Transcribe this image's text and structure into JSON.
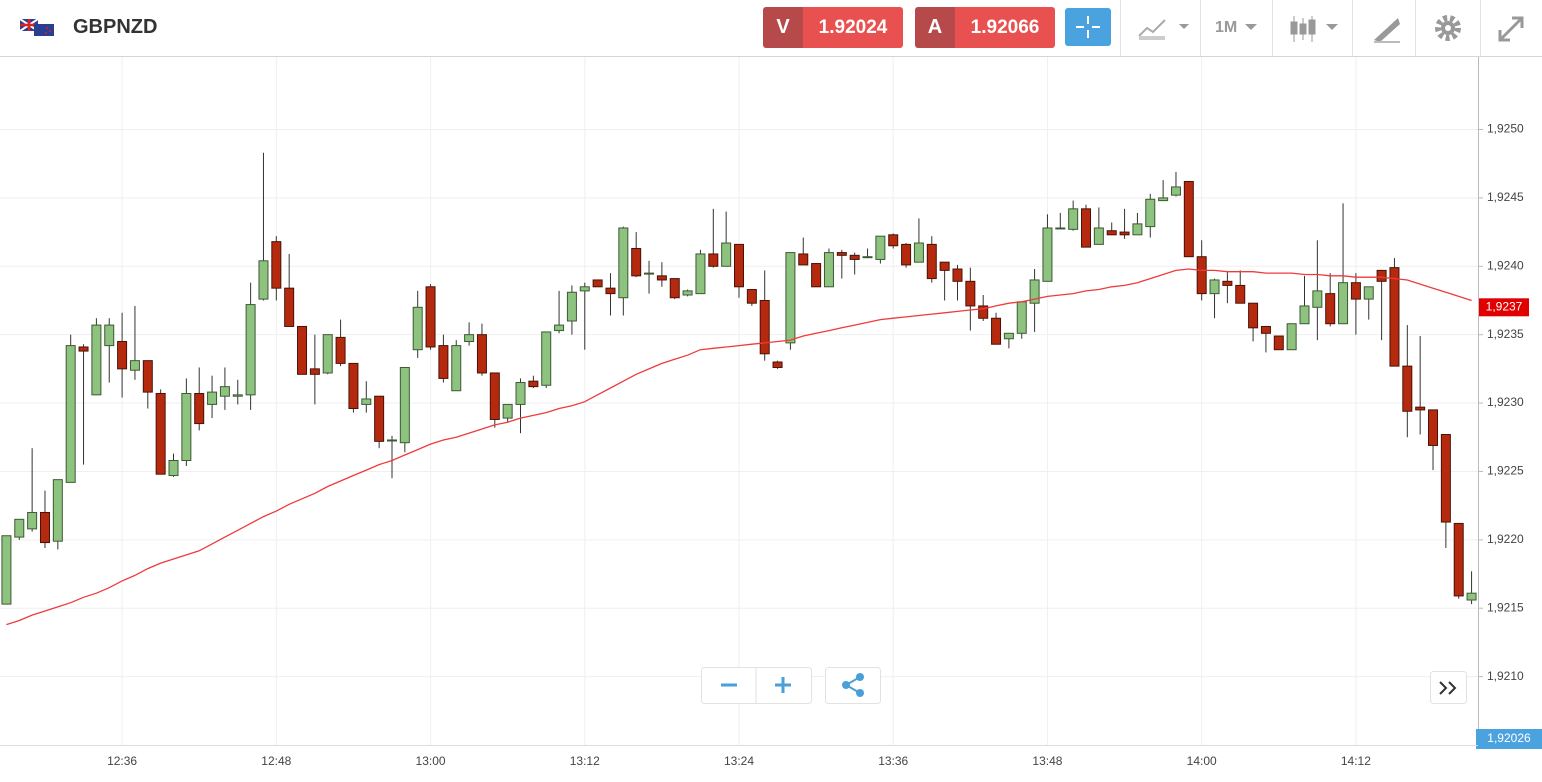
{
  "header": {
    "symbol": "GBPNZD",
    "bid_key": "V",
    "bid": "1.92024",
    "ask_key": "A",
    "ask": "1.92066",
    "interval": "1M"
  },
  "chart_data": {
    "type": "candlestick",
    "categories": [
      null,
      null,
      null,
      null,
      null,
      null,
      null,
      null,
      null,
      "12:36",
      null,
      null,
      null,
      null,
      null,
      null,
      null,
      null,
      null,
      null,
      null,
      "12:48",
      null,
      null,
      null,
      null,
      null,
      null,
      null,
      null,
      null,
      null,
      null,
      "13:00",
      null,
      null,
      null,
      null,
      null,
      null,
      null,
      null,
      null,
      null,
      null,
      "13:12",
      null,
      null,
      null,
      null,
      null,
      null,
      null,
      null,
      null,
      null,
      null,
      "13:24",
      null,
      null,
      null,
      null,
      null,
      null,
      null,
      null,
      null,
      null,
      null,
      "13:36",
      null,
      null,
      null,
      null,
      null,
      null,
      null,
      null,
      null,
      null,
      null,
      "13:48",
      null,
      null,
      null,
      null,
      null,
      null,
      null,
      null,
      null,
      null,
      null,
      "14:00",
      null,
      null,
      null,
      null,
      null,
      null,
      null,
      null,
      null,
      null,
      null,
      "14:12",
      null,
      null,
      null,
      null,
      null,
      null,
      null,
      null,
      null
    ],
    "open": [
      1.92153,
      1.92202,
      1.92208,
      1.9222,
      1.92199,
      1.92242,
      1.92341,
      1.92306,
      1.92342,
      1.92345,
      1.92324,
      1.92331,
      1.92307,
      1.92247,
      1.92258,
      1.92307,
      1.92299,
      1.92305,
      1.92305,
      1.92306,
      1.92376,
      1.92418,
      1.92384,
      1.92356,
      1.92325,
      1.92322,
      1.92348,
      1.92329,
      1.92299,
      1.92305,
      1.92273,
      1.92271,
      1.92339,
      1.92385,
      1.92342,
      1.92309,
      1.92345,
      1.9235,
      1.92322,
      1.92289,
      1.92299,
      1.92316,
      1.92313,
      1.92353,
      1.9236,
      1.92382,
      1.9239,
      1.92384,
      1.92377,
      1.92413,
      1.92395,
      1.92393,
      1.92391,
      1.92379,
      1.9238,
      1.92409,
      1.924,
      1.92416,
      1.92383,
      1.92375,
      1.9233,
      1.92344,
      1.92409,
      1.92402,
      1.92385,
      1.9241,
      1.92408,
      1.92407,
      1.92405,
      1.92423,
      1.92416,
      1.92403,
      1.92416,
      1.92403,
      1.92398,
      1.92389,
      1.92371,
      1.92362,
      1.92347,
      1.92351,
      1.92373,
      1.92389,
      1.92428,
      1.92427,
      1.92442,
      1.92416,
      1.92426,
      1.92425,
      1.92423,
      1.92429,
      1.92448,
      1.92452,
      1.92462,
      1.92407,
      1.9238,
      1.92389,
      1.92386,
      1.92373,
      1.92356,
      1.92349,
      1.92339,
      1.92358,
      1.9237,
      1.9238,
      1.92358,
      1.92388,
      1.92376,
      1.92397,
      1.92399,
      1.92327,
      1.92297,
      1.92295,
      1.92277,
      1.92212,
      1.92156
    ],
    "high": [
      1.92203,
      1.92215,
      1.92267,
      1.92236,
      1.92244,
      1.9235,
      1.92343,
      1.92362,
      1.92362,
      1.92366,
      1.92371,
      1.92331,
      1.9231,
      1.92263,
      1.92318,
      1.92326,
      1.9232,
      1.92326,
      1.92317,
      1.92388,
      1.92483,
      1.92422,
      1.92409,
      1.92356,
      1.9235,
      1.9235,
      1.92361,
      1.92329,
      1.92316,
      1.92305,
      1.92276,
      1.92326,
      1.92382,
      1.92387,
      1.9235,
      1.92346,
      1.92359,
      1.92358,
      1.92322,
      1.92299,
      1.92318,
      1.9232,
      1.92352,
      1.92382,
      1.92386,
      1.92388,
      1.9239,
      1.92395,
      1.92429,
      1.92425,
      1.92404,
      1.92403,
      1.92391,
      1.92383,
      1.92412,
      1.92442,
      1.9244,
      1.92416,
      1.92383,
      1.92397,
      1.92331,
      1.9241,
      1.92421,
      1.92402,
      1.92413,
      1.92412,
      1.9241,
      1.92413,
      1.92422,
      1.92424,
      1.92417,
      1.92435,
      1.92422,
      1.92403,
      1.92401,
      1.92399,
      1.92379,
      1.92366,
      1.92351,
      1.92374,
      1.92398,
      1.92438,
      1.92439,
      1.92448,
      1.92445,
      1.92443,
      1.92432,
      1.92442,
      1.92439,
      1.92453,
      1.92463,
      1.92469,
      1.92462,
      1.92419,
      1.92391,
      1.92396,
      1.92397,
      1.92373,
      1.92356,
      1.92349,
      1.92358,
      1.92393,
      1.92419,
      1.92395,
      1.92446,
      1.92395,
      1.92385,
      1.92397,
      1.92406,
      1.92357,
      1.92349,
      1.92295,
      1.92277,
      1.92212,
      1.92177
    ],
    "low": [
      1.92153,
      1.922,
      1.92206,
      1.92194,
      1.92193,
      1.92242,
      1.92255,
      1.92306,
      1.92315,
      1.92304,
      1.92317,
      1.92296,
      1.92248,
      1.92246,
      1.92254,
      1.9228,
      1.92289,
      1.92295,
      1.92299,
      1.92295,
      1.92375,
      1.92375,
      1.92356,
      1.92321,
      1.92299,
      1.92321,
      1.92327,
      1.92293,
      1.92293,
      1.92267,
      1.92245,
      1.92264,
      1.92333,
      1.92339,
      1.92315,
      1.92309,
      1.92342,
      1.9232,
      1.92282,
      1.92286,
      1.92278,
      1.92311,
      1.92311,
      1.92351,
      1.9235,
      1.92339,
      1.92385,
      1.92364,
      1.92364,
      1.92392,
      1.9238,
      1.92385,
      1.92376,
      1.92378,
      1.9238,
      1.92399,
      1.924,
      1.92377,
      1.92371,
      1.92331,
      1.92325,
      1.92339,
      1.92401,
      1.92385,
      1.92385,
      1.92391,
      1.92394,
      1.92406,
      1.92402,
      1.92413,
      1.92399,
      1.92403,
      1.92388,
      1.92375,
      1.92375,
      1.92353,
      1.9236,
      1.92343,
      1.9234,
      1.92347,
      1.92352,
      1.92389,
      1.92427,
      1.92426,
      1.92414,
      1.92416,
      1.92423,
      1.9242,
      1.92423,
      1.92421,
      1.92448,
      1.92451,
      1.92407,
      1.92375,
      1.92362,
      1.92373,
      1.92373,
      1.92345,
      1.92337,
      1.92339,
      1.92339,
      1.92358,
      1.92346,
      1.92356,
      1.92358,
      1.9235,
      1.92361,
      1.92346,
      1.92327,
      1.92275,
      1.92277,
      1.92251,
      1.92194,
      1.92157,
      1.92153
    ],
    "close": [
      1.92203,
      1.92215,
      1.9222,
      1.92198,
      1.92244,
      1.92342,
      1.92338,
      1.92357,
      1.92357,
      1.92325,
      1.92331,
      1.92308,
      1.92248,
      1.92258,
      1.92307,
      1.92285,
      1.92308,
      1.92312,
      1.92306,
      1.92372,
      1.92404,
      1.92384,
      1.92356,
      1.92321,
      1.92321,
      1.9235,
      1.92329,
      1.92296,
      1.92303,
      1.92272,
      1.92273,
      1.92326,
      1.9237,
      1.92341,
      1.92318,
      1.92342,
      1.9235,
      1.92322,
      1.92288,
      1.92299,
      1.92315,
      1.92312,
      1.92352,
      1.92357,
      1.92381,
      1.92385,
      1.92385,
      1.9238,
      1.92428,
      1.92393,
      1.92395,
      1.9239,
      1.92377,
      1.92382,
      1.92409,
      1.924,
      1.92417,
      1.92385,
      1.92373,
      1.92336,
      1.92326,
      1.9241,
      1.92401,
      1.92385,
      1.9241,
      1.92408,
      1.92405,
      1.92407,
      1.92422,
      1.92415,
      1.92401,
      1.92417,
      1.92391,
      1.92397,
      1.92389,
      1.92371,
      1.92362,
      1.92343,
      1.92351,
      1.92374,
      1.9239,
      1.92428,
      1.92428,
      1.92442,
      1.92414,
      1.92428,
      1.92423,
      1.92423,
      1.92431,
      1.92449,
      1.9245,
      1.92458,
      1.92407,
      1.9238,
      1.9239,
      1.92386,
      1.92373,
      1.92355,
      1.92351,
      1.92339,
      1.92358,
      1.92371,
      1.92382,
      1.92358,
      1.92388,
      1.92376,
      1.92385,
      1.92389,
      1.92327,
      1.92294,
      1.92295,
      1.92269,
      1.92213,
      1.92159,
      1.92161
    ],
    "up_color": "#8dc27f",
    "down_color": "#b52a0f",
    "moving_average": {
      "color": "#ee3b3b",
      "values": [
        1.92138,
        1.92141,
        1.92145,
        1.92148,
        1.92151,
        1.92154,
        1.92158,
        1.92161,
        1.92165,
        1.9217,
        1.92174,
        1.92179,
        1.92183,
        1.92186,
        1.92189,
        1.92192,
        1.92197,
        1.92202,
        1.92207,
        1.92212,
        1.92217,
        1.92221,
        1.92226,
        1.9223,
        1.92234,
        1.92239,
        1.92243,
        1.92247,
        1.92251,
        1.92255,
        1.92258,
        1.92262,
        1.92266,
        1.9227,
        1.92273,
        1.92275,
        1.92278,
        1.92281,
        1.92284,
        1.92286,
        1.92289,
        1.92291,
        1.92293,
        1.92296,
        1.92298,
        1.92301,
        1.92306,
        1.92311,
        1.92316,
        1.92321,
        1.92325,
        1.92329,
        1.92332,
        1.92335,
        1.92339,
        1.9234,
        1.92341,
        1.92342,
        1.92343,
        1.92344,
        1.92345,
        1.92346,
        1.92349,
        1.92351,
        1.92353,
        1.92355,
        1.92357,
        1.92359,
        1.92361,
        1.92362,
        1.92363,
        1.92364,
        1.92365,
        1.92366,
        1.92367,
        1.92368,
        1.92369,
        1.92371,
        1.92373,
        1.92374,
        1.92376,
        1.92378,
        1.92379,
        1.9238,
        1.92382,
        1.92383,
        1.92385,
        1.92386,
        1.92388,
        1.92391,
        1.92394,
        1.92397,
        1.92398,
        1.92397,
        1.92397,
        1.92396,
        1.92396,
        1.92396,
        1.92395,
        1.92395,
        1.92395,
        1.92394,
        1.92394,
        1.92393,
        1.92393,
        1.92392,
        1.92392,
        1.92392,
        1.92391,
        1.9239,
        1.92387,
        1.92384,
        1.92381,
        1.92378,
        1.92375
      ]
    },
    "ylim": [
      1.9205,
      1.92553
    ],
    "yticks": [
      {
        "value": 1.921,
        "label": "1,9210"
      },
      {
        "value": 1.9215,
        "label": "1,9215"
      },
      {
        "value": 1.922,
        "label": "1,9220"
      },
      {
        "value": 1.9225,
        "label": "1,9225"
      },
      {
        "value": 1.923,
        "label": "1,9230"
      },
      {
        "value": 1.9235,
        "label": "1,9235"
      },
      {
        "value": 1.924,
        "label": "1,9240"
      },
      {
        "value": 1.9245,
        "label": "1,9245"
      },
      {
        "value": 1.925,
        "label": "1,9250"
      }
    ],
    "grid": true,
    "last_price": {
      "value": 1.9237,
      "label": "1,9237",
      "color": "#e00000"
    },
    "bid_tag": {
      "label": "1,92026",
      "color": "#4aa3df"
    }
  }
}
